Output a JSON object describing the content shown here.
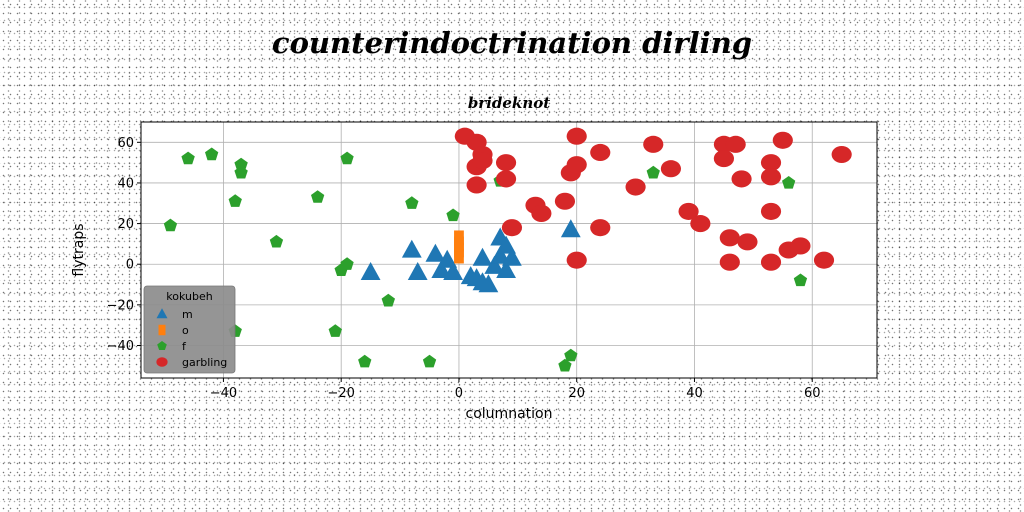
{
  "figure": {
    "suptitle": "counterindoctrination dirling"
  },
  "chart_data": {
    "type": "scatter",
    "title": "brideknot",
    "xlabel": "columnation",
    "ylabel": "flytraps",
    "xlim": [
      -54,
      71
    ],
    "ylim": [
      -56,
      70
    ],
    "xticks": [
      -40,
      -20,
      0,
      20,
      40,
      60
    ],
    "yticks": [
      -40,
      -20,
      0,
      20,
      40,
      60
    ],
    "grid": true,
    "legend": {
      "title": "kokubeh",
      "position": "lower-left"
    },
    "series": [
      {
        "name": "m",
        "marker": "triangle",
        "color": "#1f77b4",
        "points": [
          [
            -15,
            -4
          ],
          [
            -8,
            7
          ],
          [
            -7,
            -4
          ],
          [
            -4,
            5
          ],
          [
            -3,
            -3
          ],
          [
            -2,
            2
          ],
          [
            -1,
            -4
          ],
          [
            2,
            -6
          ],
          [
            3,
            -7
          ],
          [
            4,
            3
          ],
          [
            4,
            -9
          ],
          [
            5,
            -10
          ],
          [
            6,
            -1
          ],
          [
            7,
            4
          ],
          [
            7,
            13
          ],
          [
            8,
            -3
          ],
          [
            8,
            9
          ],
          [
            9,
            3
          ],
          [
            19,
            17
          ]
        ]
      },
      {
        "name": "o",
        "marker": "square",
        "color": "#ff7f0e",
        "points": [
          [
            0,
            4
          ],
          [
            0,
            7
          ],
          [
            0,
            10
          ],
          [
            0,
            13
          ]
        ]
      },
      {
        "name": "f",
        "marker": "pentagon",
        "color": "#2ca02c",
        "points": [
          [
            -49,
            19
          ],
          [
            -46,
            52
          ],
          [
            -42,
            54
          ],
          [
            -38,
            31
          ],
          [
            -38,
            -33
          ],
          [
            -37,
            49
          ],
          [
            -37,
            45
          ],
          [
            -31,
            11
          ],
          [
            -24,
            33
          ],
          [
            -21,
            -33
          ],
          [
            -20,
            -3
          ],
          [
            -19,
            52
          ],
          [
            -19,
            0
          ],
          [
            -16,
            -48
          ],
          [
            -12,
            -18
          ],
          [
            -8,
            30
          ],
          [
            -5,
            -48
          ],
          [
            -1,
            24
          ],
          [
            7,
            41
          ],
          [
            18,
            -50
          ],
          [
            19,
            -45
          ],
          [
            33,
            45
          ],
          [
            56,
            40
          ],
          [
            58,
            -8
          ]
        ]
      },
      {
        "name": "garbling",
        "marker": "circle",
        "color": "#d62728",
        "points": [
          [
            1,
            63
          ],
          [
            3,
            39
          ],
          [
            3,
            48
          ],
          [
            3,
            60
          ],
          [
            4,
            54
          ],
          [
            4,
            51
          ],
          [
            8,
            50
          ],
          [
            8,
            42
          ],
          [
            9,
            18
          ],
          [
            13,
            29
          ],
          [
            14,
            25
          ],
          [
            18,
            31
          ],
          [
            19,
            45
          ],
          [
            20,
            49
          ],
          [
            20,
            63
          ],
          [
            20,
            2
          ],
          [
            24,
            55
          ],
          [
            24,
            18
          ],
          [
            30,
            38
          ],
          [
            33,
            59
          ],
          [
            36,
            47
          ],
          [
            39,
            26
          ],
          [
            41,
            20
          ],
          [
            45,
            59
          ],
          [
            45,
            52
          ],
          [
            46,
            13
          ],
          [
            46,
            1
          ],
          [
            47,
            59
          ],
          [
            48,
            42
          ],
          [
            49,
            11
          ],
          [
            53,
            50
          ],
          [
            53,
            43
          ],
          [
            53,
            26
          ],
          [
            53,
            1
          ],
          [
            55,
            61
          ],
          [
            56,
            7
          ],
          [
            58,
            9
          ],
          [
            62,
            2
          ],
          [
            65,
            54
          ]
        ]
      }
    ]
  }
}
